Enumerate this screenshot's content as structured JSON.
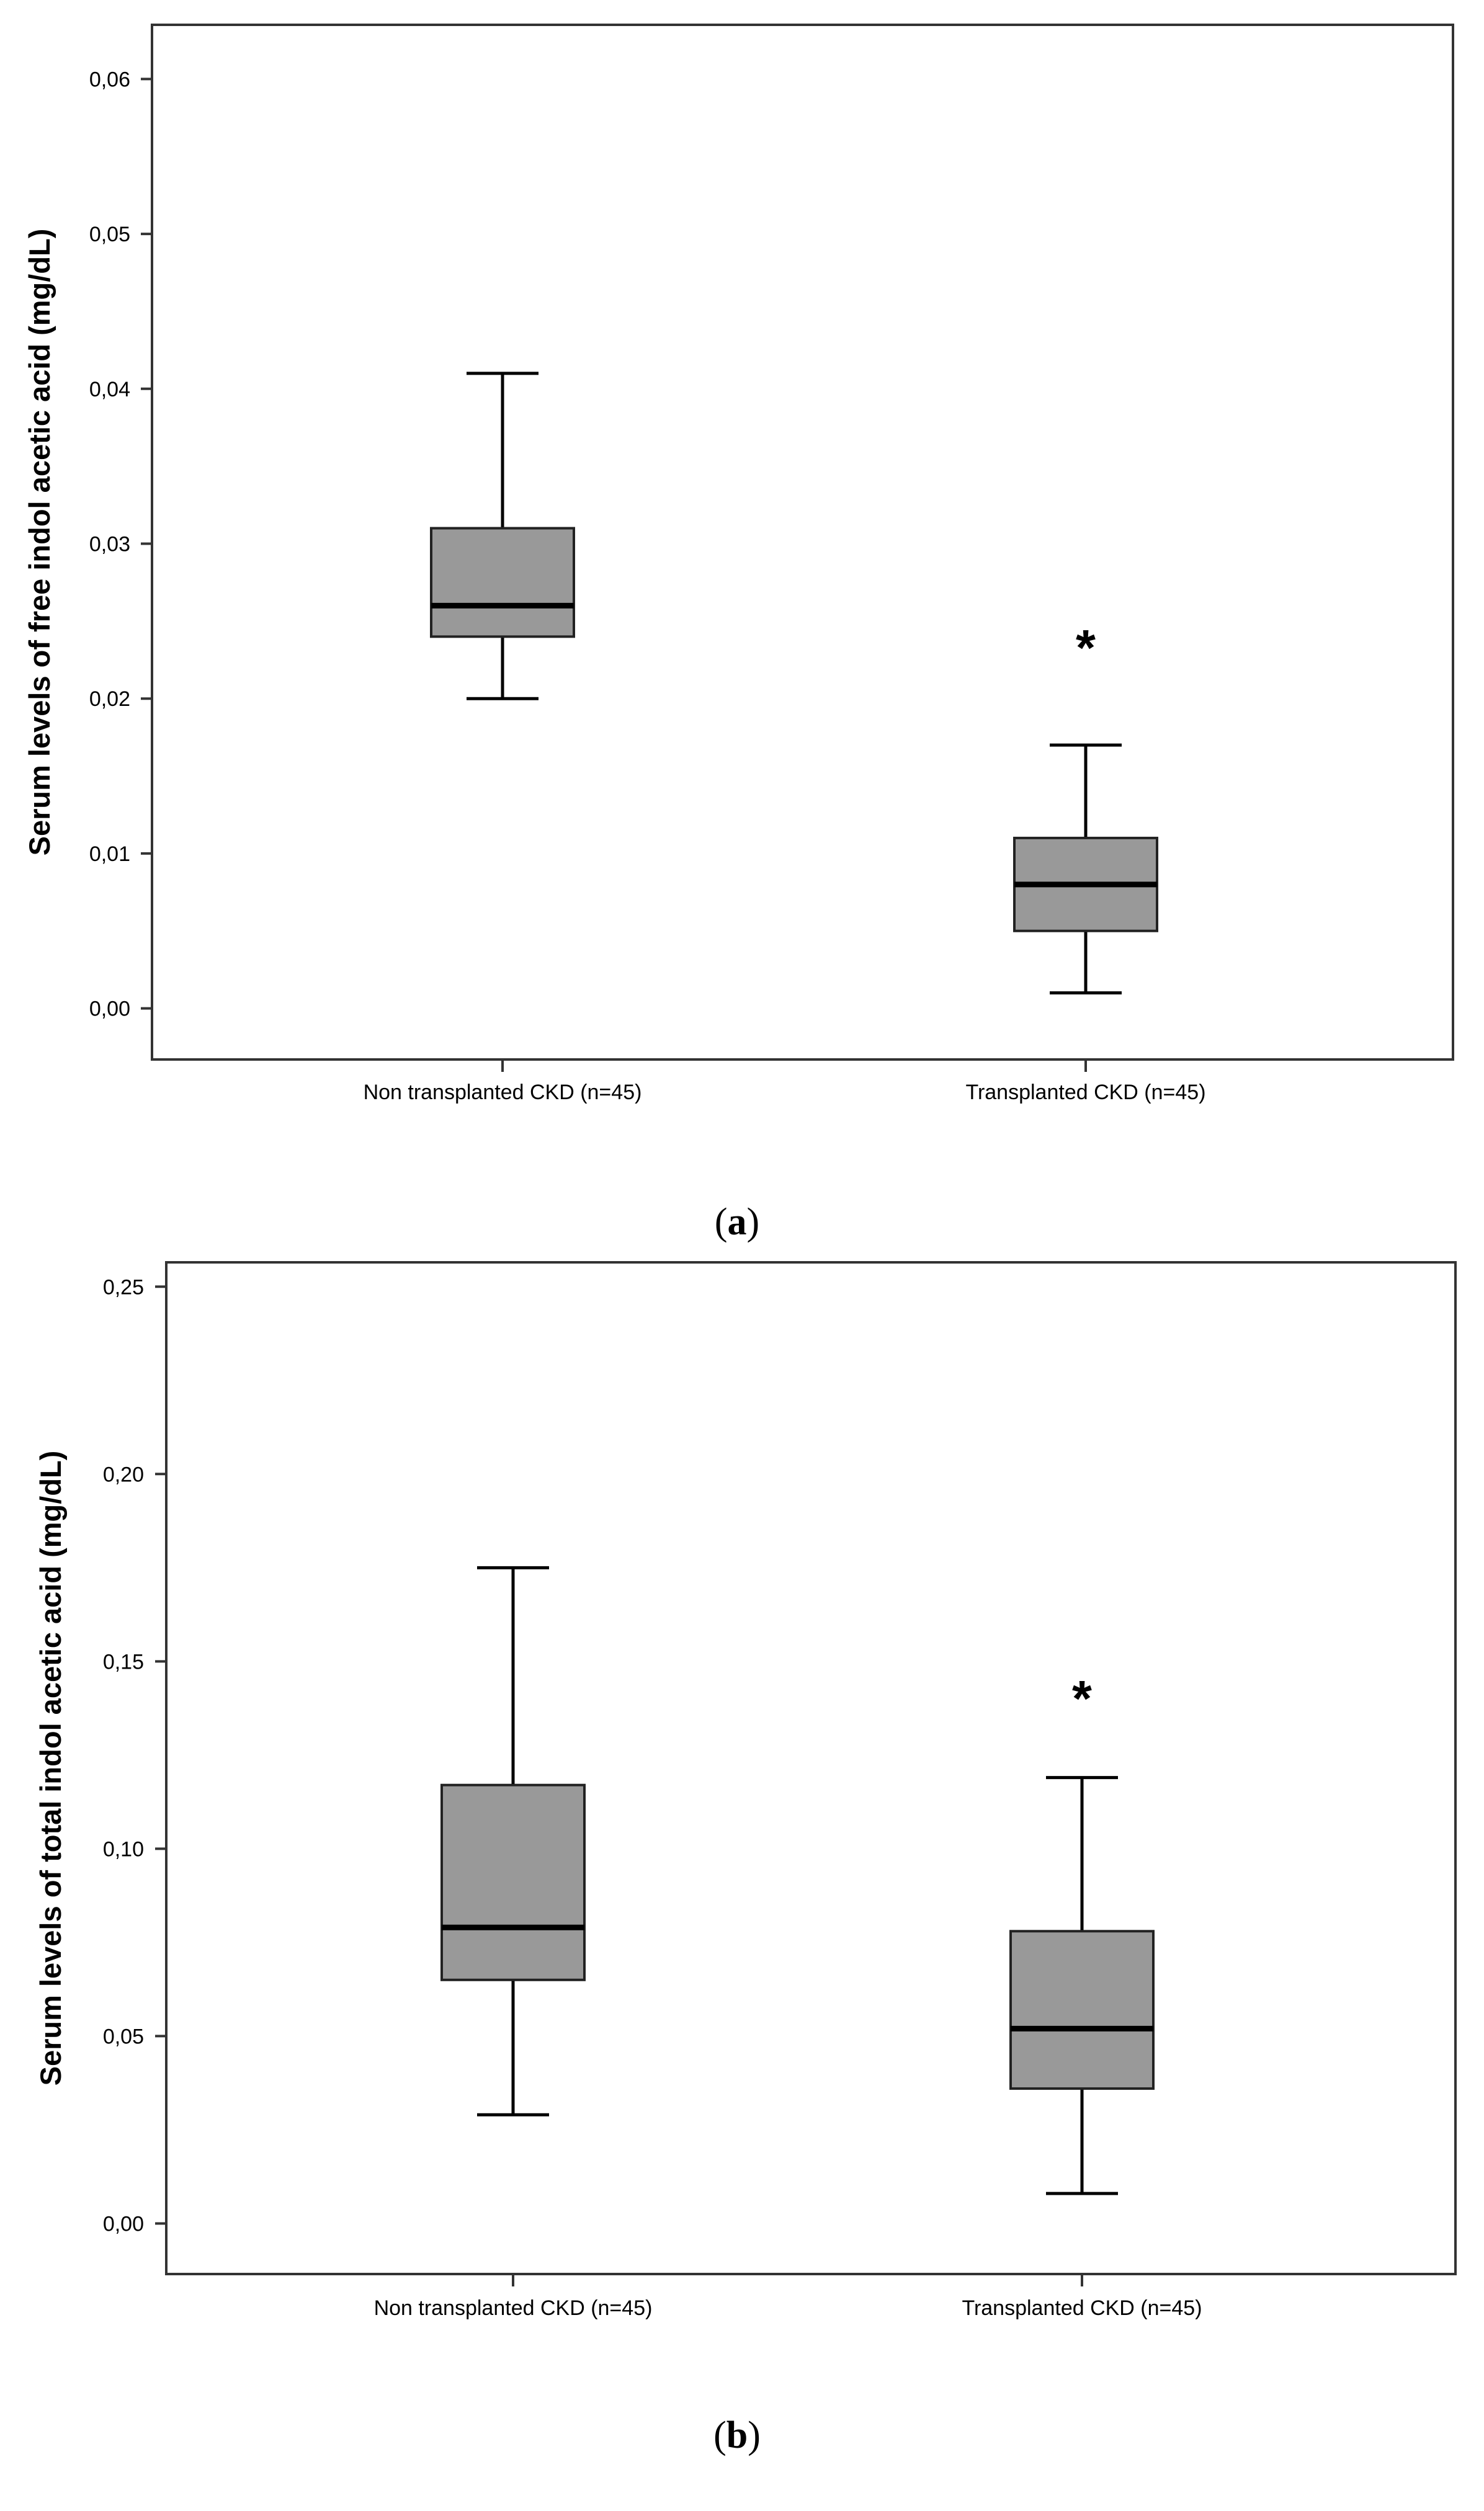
{
  "colors": {
    "box_fill": "#999999",
    "line": "#000000",
    "frame": "#333333",
    "background": "#ffffff"
  },
  "chart_data": [
    {
      "type": "boxplot",
      "caption_letter": "a",
      "ylabel": "Serum levels of free indol acetic acid (mg/dL)",
      "ylim": [
        -0.0033,
        0.0635
      ],
      "yticks": [
        0.0,
        0.01,
        0.02,
        0.03,
        0.04,
        0.05,
        0.06
      ],
      "ytick_labels": [
        "0,00",
        "0,01",
        "0,02",
        "0,03",
        "0,04",
        "0,05",
        "0,06"
      ],
      "categories": [
        "Non transplanted CKD (n=45)",
        "Transplanted CKD (n=45)"
      ],
      "boxes": [
        {
          "whisker_low": 0.02,
          "q1": 0.024,
          "median": 0.026,
          "q3": 0.031,
          "whisker_high": 0.041,
          "outliers": []
        },
        {
          "whisker_low": 0.001,
          "q1": 0.005,
          "median": 0.008,
          "q3": 0.011,
          "whisker_high": 0.017,
          "outliers": [
            0.024
          ]
        }
      ],
      "outlier_marker": "*"
    },
    {
      "type": "boxplot",
      "caption_letter": "b",
      "ylabel": "Serum levels of total indol acetic acid (mg/dL)",
      "ylim": [
        -0.0135,
        0.2565
      ],
      "yticks": [
        0.0,
        0.05,
        0.1,
        0.15,
        0.2,
        0.25
      ],
      "ytick_labels": [
        "0,00",
        "0,05",
        "0,10",
        "0,15",
        "0,20",
        "0,25"
      ],
      "categories": [
        "Non transplanted CKD (n=45)",
        "Transplanted CKD (n=45)"
      ],
      "boxes": [
        {
          "whisker_low": 0.029,
          "q1": 0.065,
          "median": 0.079,
          "q3": 0.117,
          "whisker_high": 0.175,
          "outliers": []
        },
        {
          "whisker_low": 0.008,
          "q1": 0.036,
          "median": 0.052,
          "q3": 0.078,
          "whisker_high": 0.119,
          "outliers": [
            0.143
          ]
        }
      ],
      "outlier_marker": "*"
    }
  ]
}
